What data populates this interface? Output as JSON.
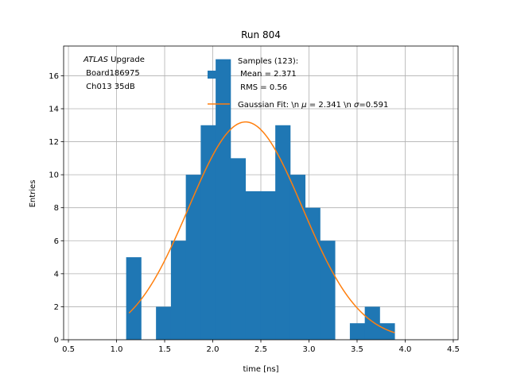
{
  "chart_data": {
    "type": "bar",
    "title": "Run 804",
    "xlabel": "time [ns]",
    "ylabel": "Entries",
    "xlim": [
      0.45,
      4.55
    ],
    "ylim": [
      0,
      17.8
    ],
    "grid": true,
    "xticks": [
      "0.5",
      "1.0",
      "1.5",
      "2.0",
      "2.5",
      "3.0",
      "3.5",
      "4.0",
      "4.5"
    ],
    "xtick_values": [
      0.5,
      1.0,
      1.5,
      2.0,
      2.5,
      3.0,
      3.5,
      4.0,
      4.5
    ],
    "yticks": [
      "0",
      "2",
      "4",
      "6",
      "8",
      "10",
      "12",
      "14",
      "16"
    ],
    "ytick_values": [
      0,
      2,
      4,
      6,
      8,
      10,
      12,
      14,
      16
    ],
    "bin_edges": [
      1.1,
      1.255,
      1.41,
      1.565,
      1.72,
      1.875,
      2.03,
      2.185,
      2.34,
      2.495,
      2.65,
      2.805,
      2.96,
      3.115,
      3.27,
      3.425,
      3.58,
      3.735,
      3.89
    ],
    "counts": [
      5,
      0,
      2,
      6,
      10,
      13,
      17,
      11,
      9,
      9,
      13,
      10,
      8,
      6,
      0,
      1,
      2,
      1
    ],
    "histogram_color": "#1f77b4",
    "fit": {
      "mu": 2.341,
      "sigma": 0.591,
      "amplitude": 13.2,
      "x_range": [
        1.13,
        3.89
      ],
      "color": "#ff7f0e"
    },
    "annotation": {
      "line1_italic": "ATLAS",
      "line1_rest": " Upgrade",
      "line2": " Board186975",
      "line3": " Ch013 35dB"
    },
    "legend": {
      "placement": "top-right",
      "histogram_entry": [
        "Samples (123):",
        " Mean = 2.371",
        " RMS = 0.56"
      ],
      "fit_entry": {
        "prefix": "Gaussian Fit: \\n ",
        "mu_symbol": "μ",
        "mid": " = 2.341 \\n ",
        "sigma_symbol": "σ",
        "suffix": "=0.591"
      }
    }
  }
}
